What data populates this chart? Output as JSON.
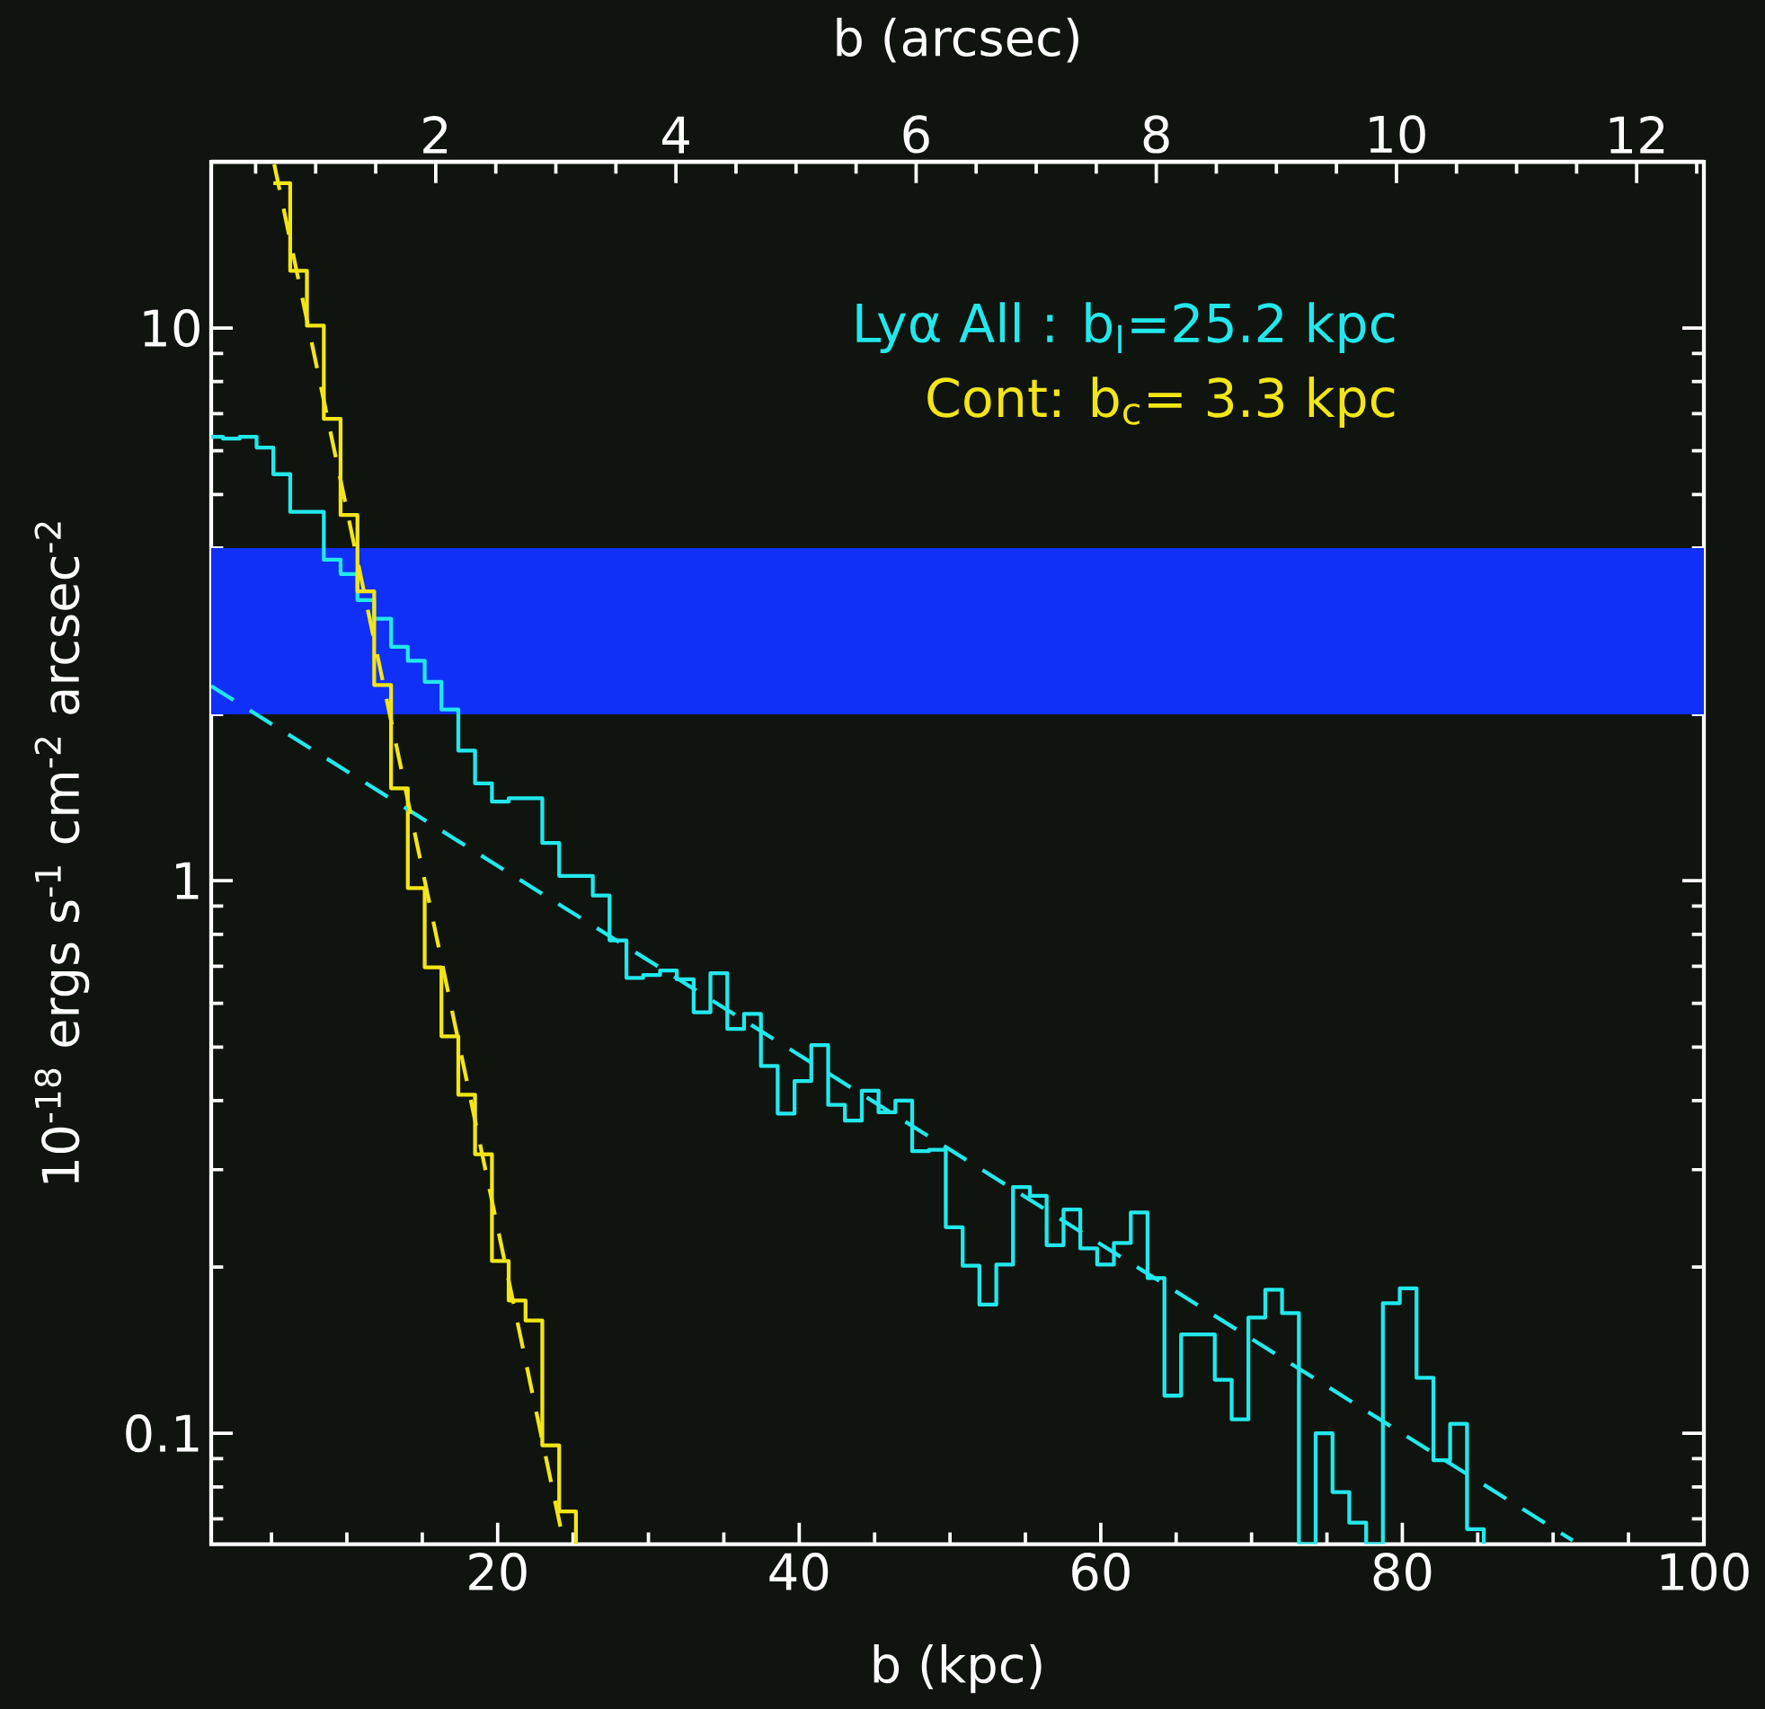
{
  "chart_data": {
    "type": "histogram",
    "xlabel": "b (kpc)",
    "x2label": "b (arcsec)",
    "ylabel": "10$^{-18}$ ergs s$^{-1}$ cm$^{-2}$ arcsec$^{-2}$",
    "log": "y",
    "legend": "top right",
    "xlim": [
      1,
      100
    ],
    "ylim": [
      0.063,
      20
    ],
    "x2lim": [
      0.13,
      12.56
    ],
    "xticks": [
      {
        "value": 5,
        "label": null
      },
      {
        "value": 10,
        "label": null
      },
      {
        "value": 15,
        "label": null
      },
      20,
      {
        "value": 25,
        "label": null
      },
      {
        "value": 30,
        "label": null
      },
      {
        "value": 35,
        "label": null
      },
      40,
      {
        "value": 45,
        "label": null
      },
      {
        "value": 50,
        "label": null
      },
      {
        "value": 55,
        "label": null
      },
      60,
      {
        "value": 65,
        "label": null
      },
      {
        "value": 70,
        "label": null
      },
      {
        "value": 75,
        "label": null
      },
      80,
      {
        "value": 85,
        "label": null
      },
      {
        "value": 90,
        "label": null
      },
      {
        "value": 95,
        "label": null
      },
      100
    ],
    "x2ticks": [
      {
        "value": 0.5,
        "label": null
      },
      {
        "value": 1,
        "label": null
      },
      {
        "value": 1.5,
        "label": null
      },
      2,
      {
        "value": 2.5,
        "label": null
      },
      {
        "value": 3,
        "label": null
      },
      {
        "value": 3.5,
        "label": null
      },
      4,
      {
        "value": 4.5,
        "label": null
      },
      {
        "value": 5,
        "label": null
      },
      {
        "value": 5.5,
        "label": null
      },
      6,
      {
        "value": 6.5,
        "label": null
      },
      {
        "value": 7,
        "label": null
      },
      {
        "value": 7.5,
        "label": null
      },
      8,
      {
        "value": 8.5,
        "label": null
      },
      {
        "value": 9,
        "label": null
      },
      {
        "value": 9.5,
        "label": null
      },
      10,
      {
        "value": 10.5,
        "label": null
      },
      {
        "value": 11,
        "label": null
      },
      {
        "value": 11.5,
        "label": null
      },
      12,
      {
        "value": 12.5,
        "label": null
      }
    ],
    "yticks": [
      {
        "value": 0.07,
        "label": null
      },
      {
        "value": 0.08,
        "label": null
      },
      {
        "value": 0.09,
        "label": null
      },
      0.1,
      {
        "value": 0.2,
        "label": null
      },
      {
        "value": 0.3,
        "label": null
      },
      {
        "value": 0.4,
        "label": null
      },
      {
        "value": 0.5,
        "label": null
      },
      {
        "value": 0.6,
        "label": null
      },
      {
        "value": 0.7,
        "label": null
      },
      {
        "value": 0.8,
        "label": null
      },
      {
        "value": 0.9,
        "label": null
      },
      1,
      {
        "value": 2,
        "label": null
      },
      {
        "value": 3,
        "label": null
      },
      {
        "value": 4,
        "label": null
      },
      {
        "value": 5,
        "label": null
      },
      {
        "value": 6,
        "label": null
      },
      {
        "value": 7,
        "label": null
      },
      {
        "value": 8,
        "label": null
      },
      {
        "value": 9,
        "label": null
      },
      10
    ],
    "bands": [
      {
        "axis": "y",
        "from": 2,
        "to": 4,
        "color": "#1030f8"
      }
    ],
    "series": [
      {
        "name": "Lyα All : b$_{l}$=25.2 kpc",
        "color": "#22e8ec",
        "bins": [
          1.0,
          1.78,
          2.89,
          4.01,
          5.12,
          6.24,
          7.35,
          8.47,
          9.58,
          10.7,
          11.81,
          12.93,
          14.04,
          15.16,
          16.27,
          17.39,
          18.5,
          19.62,
          20.73,
          21.85,
          22.96,
          24.08,
          25.19,
          26.31,
          27.42,
          28.54,
          29.65,
          30.77,
          31.88,
          33.0,
          34.11,
          35.23,
          36.34,
          37.46,
          38.57,
          39.69,
          40.8,
          41.92,
          43.03,
          44.15,
          45.26,
          46.38,
          47.49,
          48.61,
          49.72,
          50.84,
          51.95,
          53.07,
          54.18,
          55.3,
          56.41,
          57.53,
          58.64,
          59.76,
          60.87,
          61.99,
          63.1,
          64.22,
          65.33,
          66.45,
          67.56,
          68.68,
          69.79,
          70.91,
          72.02,
          73.14,
          74.25,
          75.37,
          76.48,
          77.6,
          78.71,
          79.83,
          80.94,
          82.06,
          83.17,
          84.29,
          85.4
        ],
        "values": [
          6.36,
          6.31,
          6.36,
          6.08,
          5.44,
          4.65,
          4.65,
          3.81,
          3.59,
          3.22,
          2.98,
          2.65,
          2.5,
          2.29,
          2.04,
          1.72,
          1.5,
          1.39,
          1.41,
          1.41,
          1.17,
          1.02,
          1.02,
          0.94,
          0.78,
          0.667,
          0.675,
          0.688,
          0.663,
          0.578,
          0.68,
          0.539,
          0.574,
          0.462,
          0.379,
          0.434,
          0.504,
          0.393,
          0.368,
          0.417,
          0.381,
          0.4,
          0.324,
          0.326,
          0.236,
          0.201,
          0.171,
          0.202,
          0.279,
          0.269,
          0.219,
          0.254,
          0.216,
          0.202,
          0.221,
          0.251,
          0.191,
          0.117,
          0.151,
          0.151,
          0.125,
          0.106,
          0.162,
          0.182,
          0.165,
          null,
          0.1,
          0.0783,
          0.0689,
          null,
          0.172,
          0.183,
          0.126,
          0.0894,
          0.104,
          0.0671
        ]
      },
      {
        "name": "Cont: b$_{c}$= 3.3 kpc",
        "color": "#f2e616",
        "bins": [
          5.12,
          6.24,
          7.35,
          8.47,
          9.58,
          10.7,
          11.81,
          12.93,
          14.04,
          15.16,
          16.27,
          17.39,
          18.5,
          19.62,
          20.73,
          21.85,
          22.96,
          24.08,
          25.19
        ],
        "values": [
          18.3,
          12.7,
          10.1,
          6.85,
          4.59,
          3.34,
          2.26,
          1.47,
          0.97,
          0.697,
          0.523,
          0.41,
          0.32,
          0.205,
          0.174,
          0.16,
          0.0951,
          0.0722
        ]
      },
      {
        "type": "line",
        "color": "#22e8ec",
        "line_style": "dashed",
        "x": [
          1.0,
          91.3
        ],
        "values": [
          2.25,
          0.064
        ]
      },
      {
        "type": "line",
        "color": "#f2e616",
        "line_style": "dashed",
        "x": [
          5.18,
          24.2
        ],
        "values": [
          19.8,
          0.067
        ]
      }
    ]
  }
}
